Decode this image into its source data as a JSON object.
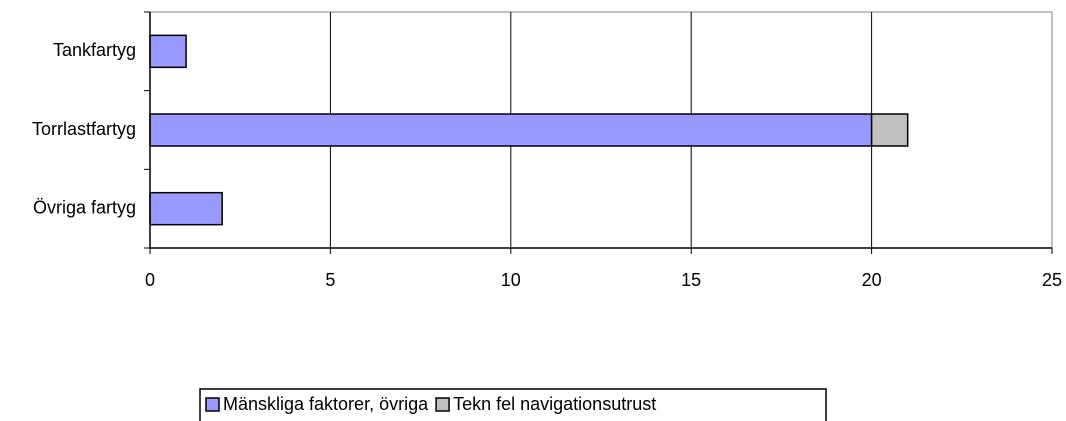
{
  "chart_data": {
    "type": "stacked_bar_horizontal",
    "categories": [
      "Tankfartyg",
      "Torrlastfartyg",
      "Övriga fartyg"
    ],
    "series": [
      {
        "name": "Mänskliga faktorer, övriga",
        "color": "#9999ff",
        "values": [
          1,
          20,
          2
        ]
      },
      {
        "name": "Tekn fel navigationsutrust",
        "color": "#c0c0c0",
        "values": [
          0,
          1,
          0
        ]
      }
    ],
    "xlim": [
      0,
      25
    ],
    "xticks": [
      0,
      5,
      10,
      15,
      20,
      25
    ],
    "grid": true,
    "legend": "bottom"
  }
}
